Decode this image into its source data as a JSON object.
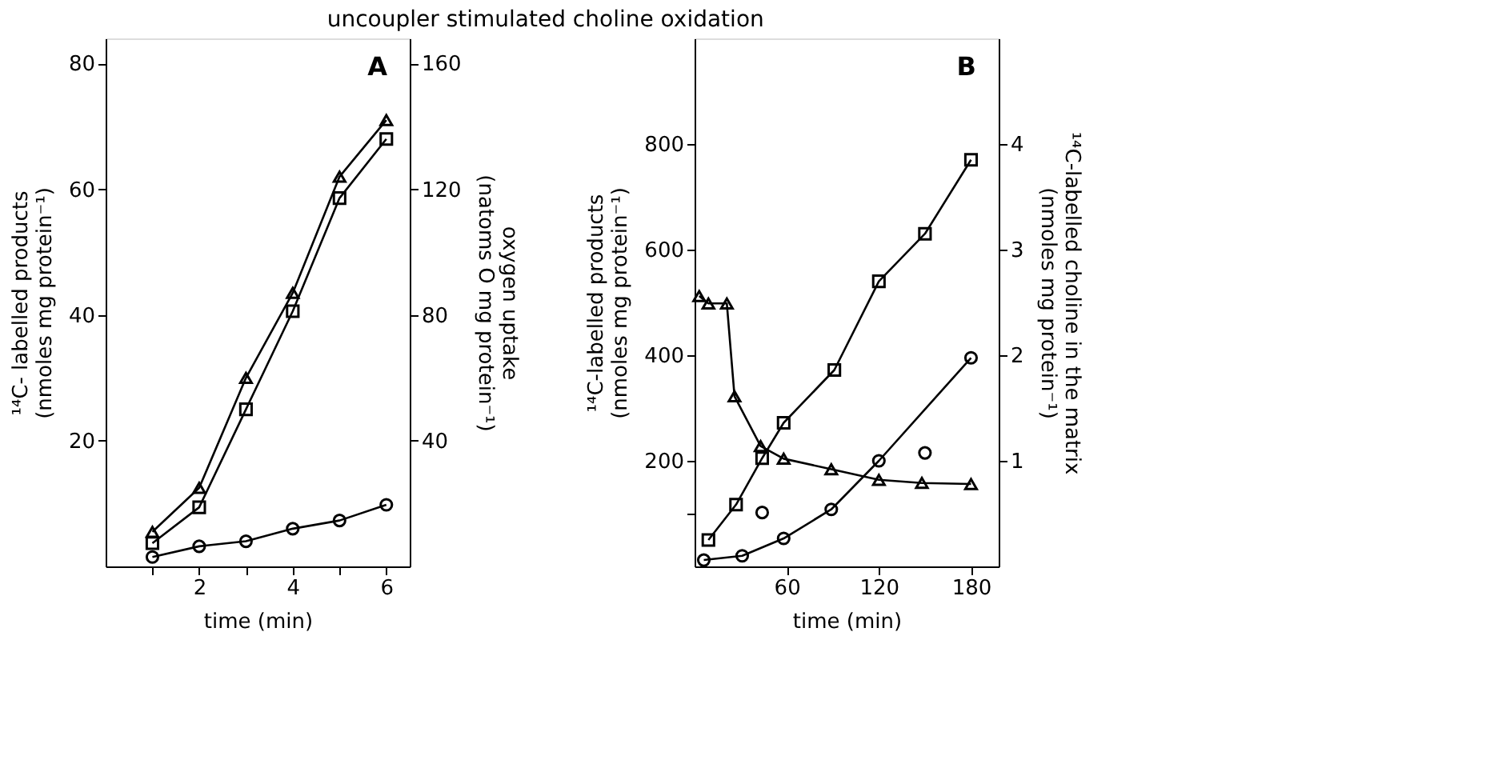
{
  "chart_data": [
    {
      "type": "line",
      "title": "uncoupler stimulated choline oxidation",
      "xlabel": "time (min)",
      "ylabel": "¹⁴C- labelled products\n(nmoles mg protein⁻¹)",
      "y2label": "oxygen uptake\n(natoms O mg protein⁻¹)",
      "annotations": [
        "A"
      ],
      "xlim": [
        0,
        6.5
      ],
      "xticks": [
        {
          "value": 1,
          "label": null
        },
        2,
        {
          "value": 3,
          "label": null
        },
        4,
        {
          "value": 5,
          "label": null
        },
        6
      ],
      "ylim": [
        0,
        84
      ],
      "yticks": [
        20,
        40,
        60,
        80
      ],
      "y2lim": [
        0,
        168
      ],
      "y2ticks": [
        40,
        80,
        120,
        160
      ],
      "grid": false,
      "series": [
        {
          "axis": "y2",
          "marker": "triangle",
          "color": "#000000",
          "x": [
            1,
            2,
            3,
            4,
            5,
            6
          ],
          "values": [
            11,
            25,
            60,
            87,
            124,
            142
          ]
        },
        {
          "marker": "square",
          "color": "#000000",
          "x": [
            1,
            2,
            3,
            4,
            5,
            6
          ],
          "values": [
            3.7,
            9.4,
            25,
            40.6,
            58.6,
            68
          ]
        },
        {
          "marker": "circle",
          "color": "#000000",
          "x": [
            1,
            2,
            3,
            4,
            5,
            6
          ],
          "values": [
            1.5,
            3.2,
            4,
            6,
            7.3,
            9.8
          ]
        }
      ]
    },
    {
      "type": "line",
      "xlabel": "time (min)",
      "ylabel": "¹⁴C-labelled products\n(nmoles mg protein⁻¹)",
      "y2label": "¹⁴C-labelled choline in the matrix\n(nmoles mg protein⁻¹)",
      "annotations": [
        "B"
      ],
      "xlim": [
        0,
        198
      ],
      "xticks": [
        60,
        120,
        180
      ],
      "ylim": [
        0,
        1000
      ],
      "yticks": [
        {
          "value": 100,
          "label": null
        },
        200,
        400,
        600,
        800
      ],
      "y2lim": [
        0,
        5
      ],
      "y2ticks": [
        1,
        2,
        3,
        4
      ],
      "grid": false,
      "series": [
        {
          "axis": "y2",
          "marker": "triangle",
          "color": "#000000",
          "x": [
            3,
            9,
            21,
            26,
            43,
            58,
            89,
            120,
            148,
            180
          ],
          "values": [
            2.56,
            2.49,
            2.49,
            1.61,
            1.14,
            1.02,
            0.92,
            0.82,
            0.79,
            0.78
          ]
        },
        {
          "marker": "square",
          "color": "#000000",
          "x": [
            9,
            27,
            44,
            58,
            91,
            120,
            150,
            180
          ],
          "values": [
            50,
            117,
            205,
            272,
            372,
            540,
            630,
            770
          ]
        },
        {
          "marker": "circle",
          "color": "#000000",
          "x": [
            6,
            31,
            58,
            89,
            120,
            180
          ],
          "values": [
            12,
            20,
            53,
            108,
            200,
            395
          ]
        },
        {
          "type": "scatter",
          "marker": "circle",
          "color": "#000000",
          "x": [
            44,
            150
          ],
          "values": [
            102,
            215
          ]
        }
      ]
    }
  ]
}
